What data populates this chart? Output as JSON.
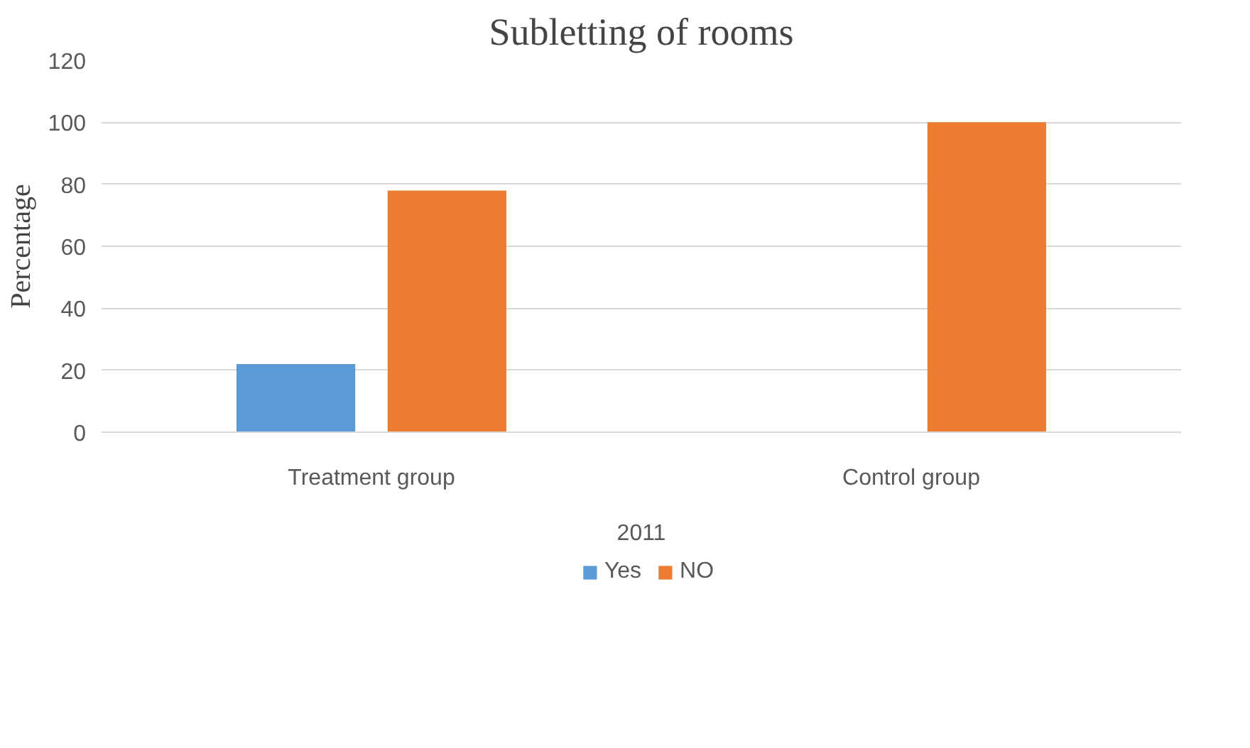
{
  "chart_data": {
    "type": "bar",
    "title": "Subletting of rooms",
    "ylabel": "Percentage",
    "xlabel": "2011",
    "categories": [
      "Treatment group",
      "Control group"
    ],
    "series": [
      {
        "name": "Yes",
        "color": "#5b9bd5",
        "values": [
          22,
          0
        ]
      },
      {
        "name": "NO",
        "color": "#ed7d31",
        "values": [
          78,
          100
        ]
      }
    ],
    "ylim": [
      0,
      120
    ],
    "yticks": [
      0,
      20,
      40,
      60,
      80,
      100,
      120
    ],
    "grid": "y",
    "legend": "bottom"
  }
}
